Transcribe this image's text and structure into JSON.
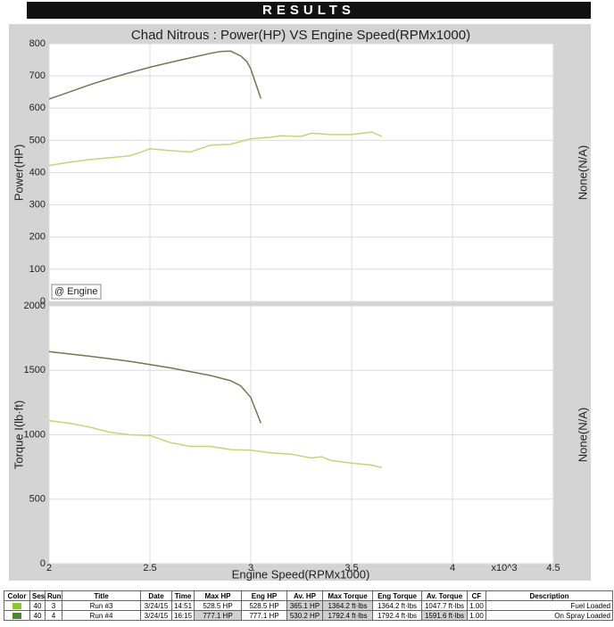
{
  "header": {
    "title": "RESULTS"
  },
  "chart_data": [
    {
      "type": "line",
      "title": "Chad Nitrous : Power(HP) VS Engine Speed(RPMx1000)",
      "ylabel": "Power(HP)",
      "y2label": "None(N/A)",
      "legend_label": "@ Engine",
      "xlim": [
        2,
        4.5
      ],
      "xticks": [
        2,
        2.5,
        3,
        3.5,
        4,
        4.5
      ],
      "ylim": [
        0,
        800
      ],
      "yticks": [
        0,
        100,
        200,
        300,
        400,
        500,
        600,
        700,
        800
      ],
      "grid": true,
      "series": [
        {
          "color": "#6f7a52",
          "x": [
            2.0,
            2.1,
            2.2,
            2.3,
            2.4,
            2.5,
            2.6,
            2.7,
            2.8,
            2.85,
            2.9,
            2.95,
            2.98,
            3.0,
            3.05
          ],
          "values": [
            628,
            650,
            672,
            692,
            710,
            727,
            742,
            756,
            770,
            776,
            777,
            762,
            745,
            722,
            630
          ]
        },
        {
          "color": "#c9d27a",
          "x": [
            2.0,
            2.1,
            2.2,
            2.3,
            2.4,
            2.45,
            2.5,
            2.6,
            2.7,
            2.8,
            2.9,
            3.0,
            3.1,
            3.15,
            3.25,
            3.3,
            3.4,
            3.5,
            3.6,
            3.65
          ],
          "values": [
            422,
            432,
            440,
            446,
            452,
            462,
            474,
            468,
            464,
            485,
            488,
            505,
            510,
            514,
            512,
            522,
            518,
            518,
            526,
            512
          ]
        }
      ]
    },
    {
      "type": "line",
      "ylabel": "Torque I(lb·ft)",
      "y2label": "None(N/A)",
      "xlabel": "Engine Speed(RPMx1000)",
      "x_multiplier": "x10^3",
      "xlim": [
        2,
        4.5
      ],
      "xticks": [
        2,
        2.5,
        3,
        3.5,
        4,
        4.5
      ],
      "ylim": [
        0,
        2000
      ],
      "yticks": [
        0,
        500,
        1000,
        1500,
        2000
      ],
      "grid": true,
      "series": [
        {
          "color": "#6f7a52",
          "x": [
            2.0,
            2.2,
            2.4,
            2.6,
            2.8,
            2.9,
            2.95,
            3.0,
            3.05
          ],
          "values": [
            1645,
            1610,
            1570,
            1520,
            1460,
            1420,
            1380,
            1290,
            1090
          ]
        },
        {
          "color": "#c9d27a",
          "x": [
            2.0,
            2.1,
            2.2,
            2.3,
            2.4,
            2.5,
            2.6,
            2.7,
            2.8,
            2.9,
            3.0,
            3.1,
            3.2,
            3.3,
            3.35,
            3.4,
            3.5,
            3.6,
            3.65
          ],
          "values": [
            1110,
            1090,
            1060,
            1020,
            1000,
            995,
            940,
            910,
            910,
            885,
            880,
            860,
            850,
            820,
            830,
            800,
            780,
            765,
            745
          ]
        }
      ]
    }
  ],
  "table": {
    "columns": [
      "Color",
      "Ses",
      "Run",
      "Title",
      "Date",
      "Time",
      "Max HP",
      "Eng HP",
      "Av. HP",
      "Max Torque",
      "Eng Torque",
      "Av. Torque",
      "CF",
      "Description"
    ],
    "swatches": [
      "#8cc43c",
      "#4a8a2a"
    ],
    "rows": [
      [
        "40",
        "3",
        "Run #3",
        "3/24/15",
        "14:51",
        "528.5 HP",
        "528.5 HP",
        "365.1 HP",
        "1364.2 ft·lbs",
        "1364.2 ft·lbs",
        "1047.7 ft·lbs",
        "1.00",
        "Fuel Loaded"
      ],
      [
        "40",
        "4",
        "Run #4",
        "3/24/15",
        "16:15",
        "777.1 HP",
        "777.1 HP",
        "530.2 HP",
        "1792.4 ft·lbs",
        "1792.4 ft·lbs",
        "1591.6 ft·lbs",
        "1.00",
        "On Spray Loaded"
      ]
    ]
  }
}
